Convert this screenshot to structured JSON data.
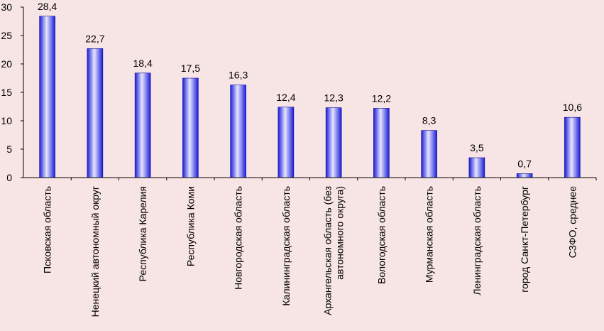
{
  "chart_data": {
    "type": "bar",
    "categories": [
      [
        "Псковская область"
      ],
      [
        "Ненецкий автономный округ"
      ],
      [
        "Республика Карелия"
      ],
      [
        "Республика Коми"
      ],
      [
        "Новгородская область"
      ],
      [
        "Калининградская область"
      ],
      [
        "Архангельская область (без",
        "автономного округа)"
      ],
      [
        "Вологодская область"
      ],
      [
        "Мурманская область"
      ],
      [
        "Ленинградская область"
      ],
      [
        "город Санкт-Петербург"
      ],
      [
        "СЗФО, среднее"
      ]
    ],
    "values": [
      28.4,
      22.7,
      18.4,
      17.5,
      16.3,
      12.4,
      12.3,
      12.2,
      8.3,
      3.5,
      0.7,
      10.6
    ],
    "data_labels": [
      "28,4",
      "22,7",
      "18,4",
      "17,5",
      "16,3",
      "12,4",
      "12,3",
      "12,2",
      "8,3",
      "3,5",
      "0,7",
      "10,6"
    ],
    "yticks": [
      "0",
      "5",
      "10",
      "15",
      "20",
      "25",
      "30"
    ],
    "ylim": [
      0,
      30
    ],
    "grid": false,
    "colors": {
      "bar_dark": "#1a1ad8",
      "bar_light": "#e6e6ff",
      "background": "#f7e4e4"
    }
  }
}
